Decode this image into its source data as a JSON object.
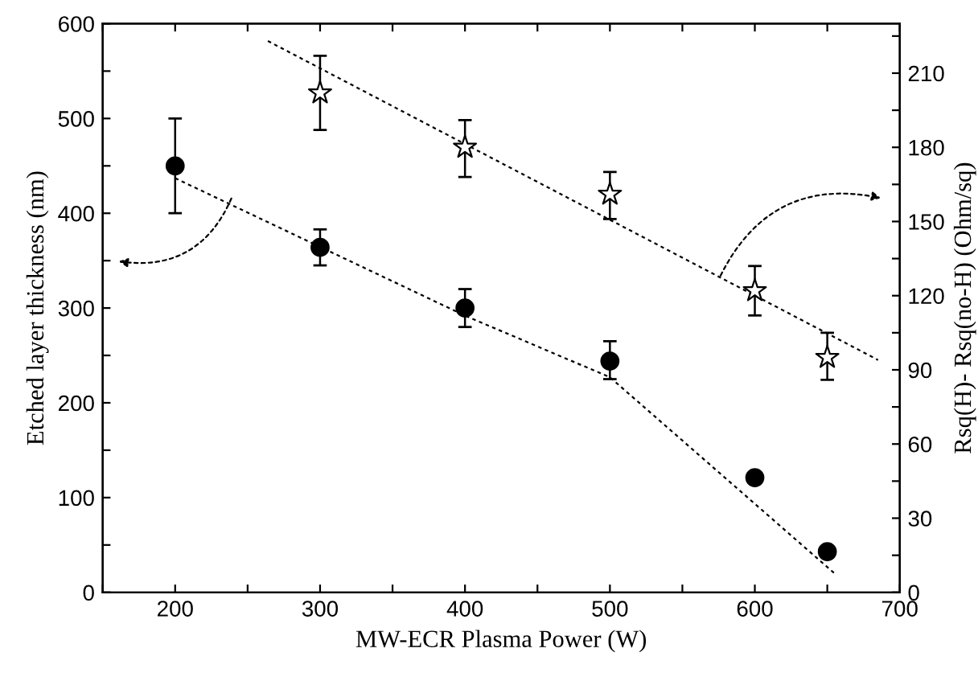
{
  "chart_data": {
    "type": "scatter",
    "xlabel": "MW-ECR Plasma Power (W)",
    "ylabel": "Etched layer thickness (nm)",
    "y2label": "Rsq(H)- Rsq(no-H) (Ohm/sq)",
    "xlim": [
      150,
      700
    ],
    "xticks": [
      {
        "value": 150,
        "label": null
      },
      200,
      {
        "value": 250,
        "label": null
      },
      300,
      {
        "value": 350,
        "label": null
      },
      400,
      {
        "value": 450,
        "label": null
      },
      500,
      {
        "value": 550,
        "label": null
      },
      600,
      {
        "value": 650,
        "label": null
      },
      700
    ],
    "ylim": [
      0,
      600
    ],
    "yticks": [
      0,
      {
        "value": 50,
        "label": null
      },
      100,
      {
        "value": 150,
        "label": null
      },
      200,
      {
        "value": 250,
        "label": null
      },
      300,
      {
        "value": 350,
        "label": null
      },
      400,
      {
        "value": 450,
        "label": null
      },
      500,
      {
        "value": 550,
        "label": null
      },
      600
    ],
    "y2lim": [
      0,
      230
    ],
    "y2ticks": [
      0,
      {
        "value": 15,
        "label": null
      },
      30,
      {
        "value": 45,
        "label": null
      },
      60,
      {
        "value": 75,
        "label": null
      },
      90,
      {
        "value": 105,
        "label": null
      },
      120,
      {
        "value": 135,
        "label": null
      },
      150,
      {
        "value": 165,
        "label": null
      },
      180,
      {
        "value": 195,
        "label": null
      },
      210,
      {
        "value": 225,
        "label": null
      }
    ],
    "grid": false,
    "series": [
      {
        "marker": "circle",
        "color": "#000000",
        "x": [
          200,
          300,
          400,
          500,
          600,
          650
        ],
        "values": [
          450,
          364,
          300,
          244,
          121,
          43
        ],
        "errors": [
          [
            400,
            500
          ],
          [
            345,
            383
          ],
          [
            280,
            320
          ],
          [
            225,
            265
          ],
          null,
          null
        ]
      },
      {
        "marker": "star",
        "color": "#000000",
        "axis": "y2",
        "x": [
          300,
          400,
          500,
          600,
          650
        ],
        "values": [
          202,
          180,
          161,
          122,
          95
        ],
        "errors": [
          [
            187,
            217
          ],
          [
            168,
            191
          ],
          [
            151,
            170
          ],
          [
            112,
            132
          ],
          [
            86,
            105
          ]
        ]
      },
      {
        "type": "line",
        "line_style": "dotted",
        "color": "#000000",
        "x": [
          200,
          400,
          500,
          655
        ],
        "values": [
          437,
          292,
          227,
          20
        ]
      },
      {
        "type": "line",
        "line_style": "dotted",
        "color": "#000000",
        "axis": "y2",
        "x": [
          264,
          685
        ],
        "values": [
          223,
          94
        ]
      }
    ]
  }
}
